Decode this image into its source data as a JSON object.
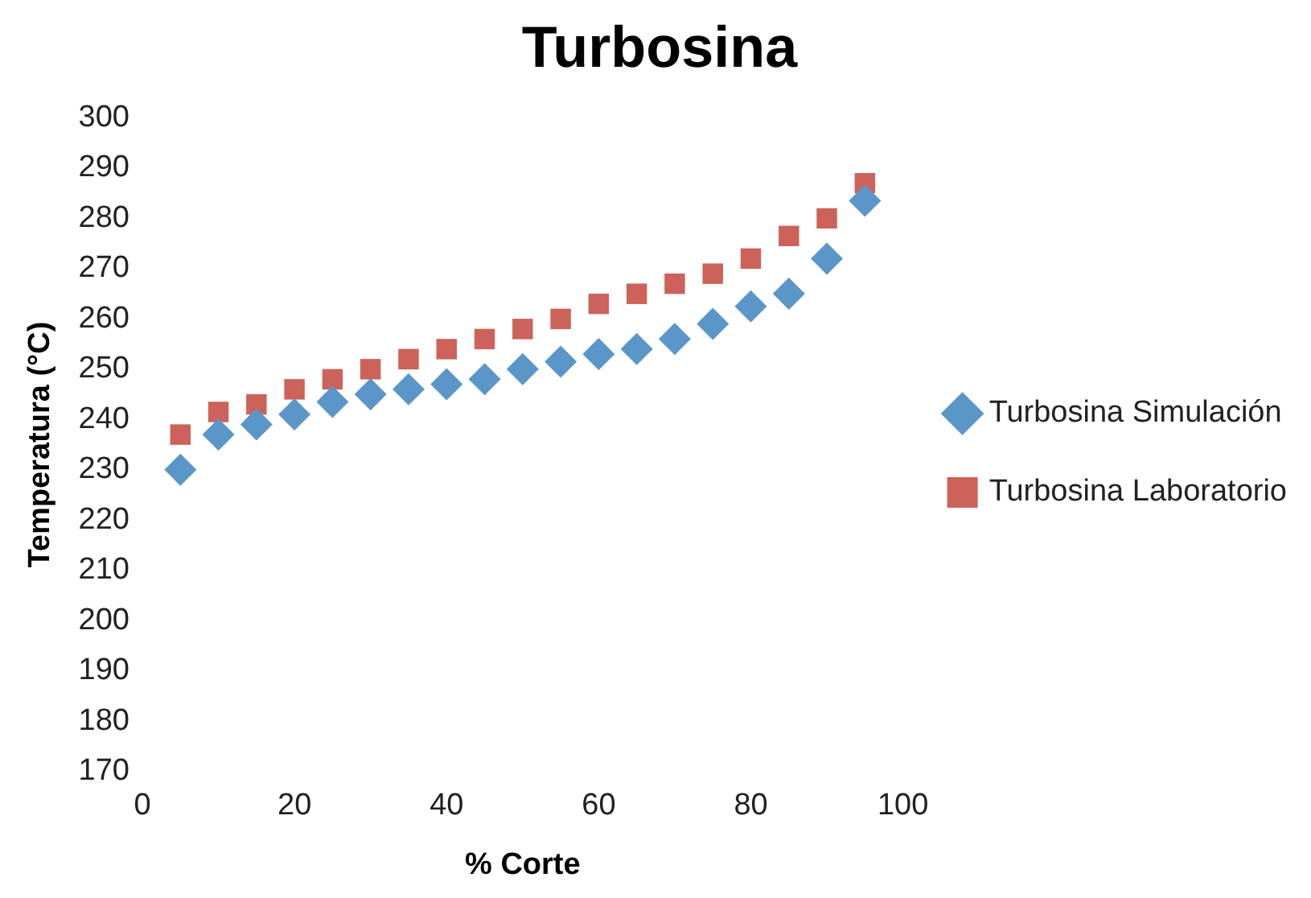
{
  "chart_data": {
    "type": "scatter",
    "title": "Turbosina",
    "xlabel": "% Corte",
    "ylabel": "Temperatura (°C)",
    "xlim": [
      0,
      100
    ],
    "xticks": [
      0,
      20,
      40,
      60,
      80,
      100
    ],
    "ylim": [
      170,
      300
    ],
    "yticks": [
      170,
      180,
      190,
      200,
      210,
      220,
      230,
      240,
      250,
      260,
      270,
      280,
      290,
      300
    ],
    "grid": false,
    "legend": "right",
    "series": [
      {
        "name": "Turbosina Simulación",
        "color": "#5b96c8",
        "marker": "diamond",
        "x": [
          5,
          10,
          15,
          20,
          25,
          30,
          35,
          40,
          45,
          50,
          55,
          60,
          65,
          70,
          75,
          80,
          85,
          90,
          95
        ],
        "values": [
          230,
          237,
          239,
          241,
          243.5,
          245,
          246,
          247,
          248,
          250,
          251.5,
          253,
          254,
          256,
          259,
          262.5,
          265,
          272,
          283.5
        ]
      },
      {
        "name": "Turbosina Laboratorio",
        "color": "#cc625a",
        "marker": "square",
        "x": [
          5,
          10,
          15,
          20,
          25,
          30,
          35,
          40,
          45,
          50,
          55,
          60,
          65,
          70,
          75,
          80,
          85,
          90,
          95
        ],
        "values": [
          237,
          241.5,
          243,
          246,
          248,
          250,
          252,
          254,
          256,
          258,
          260,
          263,
          265,
          267,
          269,
          272,
          276.5,
          280,
          287
        ]
      }
    ]
  }
}
